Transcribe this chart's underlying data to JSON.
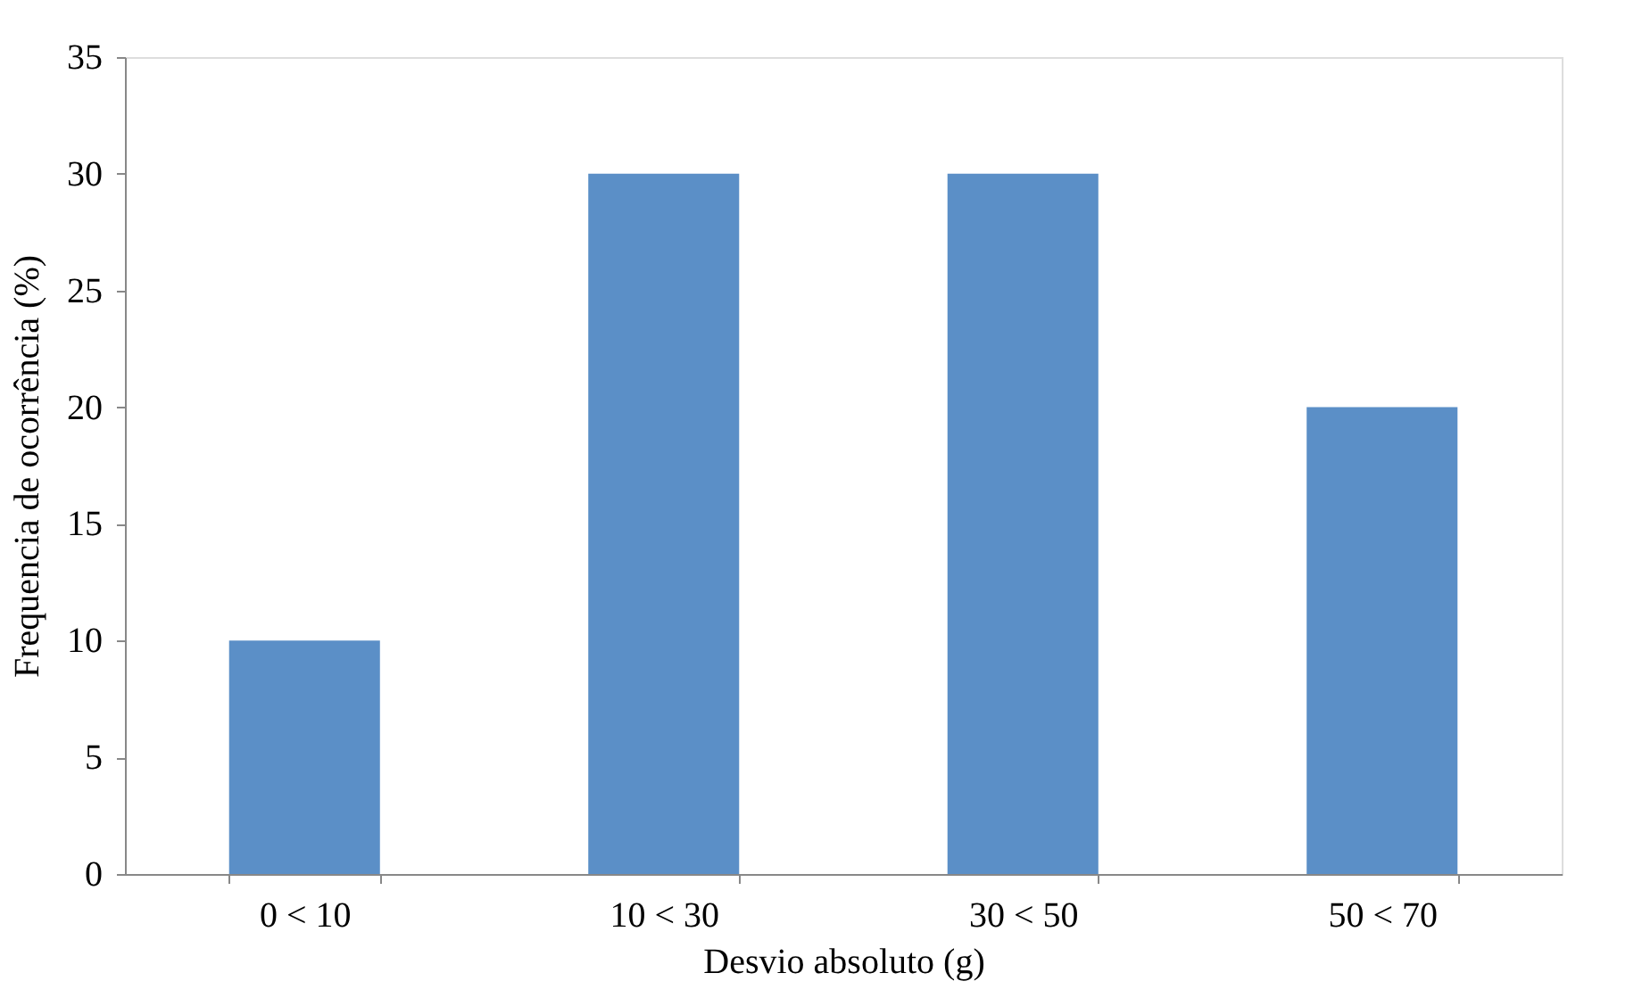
{
  "chart_data": {
    "type": "bar",
    "xlabel": "Desvio absoluto (g)",
    "ylabel": "Frequencia de ocorrência (%)",
    "categories": [
      "0 < 10",
      "10 < 30",
      "30 < 50",
      "50 < 70"
    ],
    "values": [
      10,
      30,
      30,
      20
    ],
    "color": "#5b8fc7",
    "ylim": [
      0,
      35
    ],
    "yticks": [
      0,
      5,
      10,
      15,
      20,
      25,
      30,
      35
    ],
    "grid": false
  }
}
